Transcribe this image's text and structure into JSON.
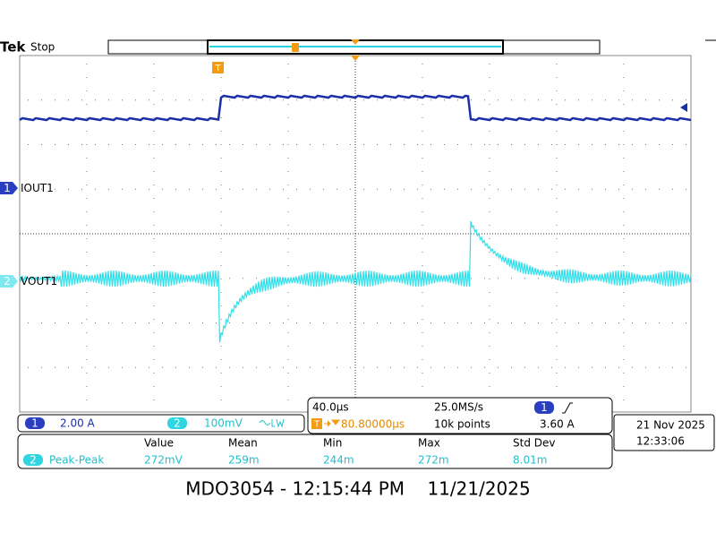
{
  "header": {
    "brand": "Tek",
    "status": "Stop"
  },
  "channels": [
    {
      "marker": "1",
      "label": "IOUT1"
    },
    {
      "marker": "2",
      "label": "VOUT1"
    }
  ],
  "trigger_marker": "T",
  "vertical": [
    {
      "channel": "1",
      "scale": "2.00 A"
    },
    {
      "channel": "2",
      "scale": "100mV"
    }
  ],
  "timebase": {
    "scale": "40.0µs",
    "sample_rate": "25.0MS/s",
    "trigger_channel": "1",
    "trigger_level": "3.60 A",
    "trigger_marker": "T",
    "position": "80.80000µs",
    "record": "10k points"
  },
  "clock": {
    "date": "21 Nov 2025",
    "time": "12:33:06"
  },
  "measurements": {
    "headers": [
      "Value",
      "Mean",
      "Min",
      "Max",
      "Std Dev"
    ],
    "rows": [
      {
        "channel": "2",
        "name": "Peak-Peak",
        "cells": [
          "272mV",
          "259m",
          "244m",
          "272m",
          "8.01m"
        ]
      }
    ]
  },
  "footer": "MDO3054 - 12:15:44 PM    11/21/2025"
}
